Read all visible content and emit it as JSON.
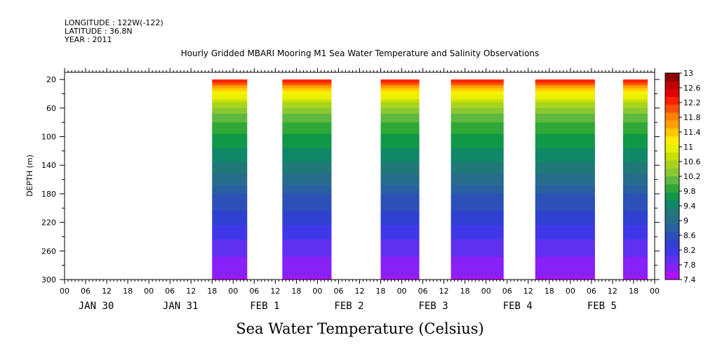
{
  "header": {
    "longitude": "LONGITUDE : 122W(-122)",
    "latitude": "LATITUDE : 36.8N",
    "year": "YEAR : 2011"
  },
  "chart_data": {
    "type": "heatmap",
    "title": "Hourly Gridded MBARI Mooring M1 Sea Water Temperature and Salinity Observations",
    "xlabel": "Sea Water Temperature (Celsius)",
    "ylabel": "DEPTH (m)",
    "x_start": "2011-01-30T00:00",
    "x_end": "2011-02-06T00:00",
    "x_tick_labels": [
      "00",
      "06",
      "12",
      "18",
      "00",
      "06",
      "12",
      "18",
      "00",
      "06",
      "12",
      "18",
      "00",
      "06",
      "12",
      "18",
      "00",
      "06",
      "12",
      "18",
      "00",
      "06",
      "12",
      "18",
      "00",
      "06",
      "12",
      "18",
      "00"
    ],
    "x_day_labels": [
      "JAN 30",
      "JAN 31",
      "FEB  1",
      "FEB  2",
      "FEB  3",
      "FEB  4",
      "FEB  5"
    ],
    "y_tick_labels": [
      "20",
      "60",
      "100",
      "140",
      "180",
      "220",
      "260",
      "300"
    ],
    "ylim": [
      300,
      10
    ],
    "colorbar": {
      "levels": [
        13,
        12.6,
        12.2,
        11.8,
        11.4,
        11,
        10.6,
        10.2,
        9.8,
        9.4,
        9,
        8.6,
        8.2,
        7.8,
        7.4
      ],
      "colors": [
        "#8b0000",
        "#c00000",
        "#e00000",
        "#ff2000",
        "#ff5000",
        "#ff8000",
        "#ffa000",
        "#ffc800",
        "#ffee00",
        "#e8f000",
        "#c8e000",
        "#a8d420",
        "#88c830",
        "#60b840",
        "#30a838",
        "#109848",
        "#108868",
        "#207878",
        "#286c8c",
        "#2860a0",
        "#2c50b8",
        "#3040d0",
        "#4038e8",
        "#6030f0",
        "#8820f8",
        "#b010ff"
      ]
    },
    "segments": [
      {
        "start": "2011-01-31T18:00",
        "end": "2011-02-01T04:00"
      },
      {
        "start": "2011-02-01T14:00",
        "end": "2011-02-02T04:00"
      },
      {
        "start": "2011-02-02T18:00",
        "end": "2011-02-03T05:00"
      },
      {
        "start": "2011-02-03T14:00",
        "end": "2011-02-04T05:00"
      },
      {
        "start": "2011-02-04T14:00",
        "end": "2011-02-05T07:00"
      },
      {
        "start": "2011-02-05T15:00",
        "end": "2011-02-05T22:00"
      }
    ],
    "temperature_profile": [
      {
        "depth": 20,
        "temp": 12.4
      },
      {
        "depth": 30,
        "temp": 11.7
      },
      {
        "depth": 40,
        "temp": 11.1
      },
      {
        "depth": 50,
        "temp": 10.7
      },
      {
        "depth": 60,
        "temp": 10.4
      },
      {
        "depth": 80,
        "temp": 10.0
      },
      {
        "depth": 100,
        "temp": 9.7
      },
      {
        "depth": 120,
        "temp": 9.5
      },
      {
        "depth": 140,
        "temp": 9.3
      },
      {
        "depth": 160,
        "temp": 9.0
      },
      {
        "depth": 180,
        "temp": 8.7
      },
      {
        "depth": 200,
        "temp": 8.5
      },
      {
        "depth": 220,
        "temp": 8.3
      },
      {
        "depth": 240,
        "temp": 8.1
      },
      {
        "depth": 260,
        "temp": 7.9
      },
      {
        "depth": 280,
        "temp": 7.7
      },
      {
        "depth": 300,
        "temp": 7.6
      }
    ]
  }
}
